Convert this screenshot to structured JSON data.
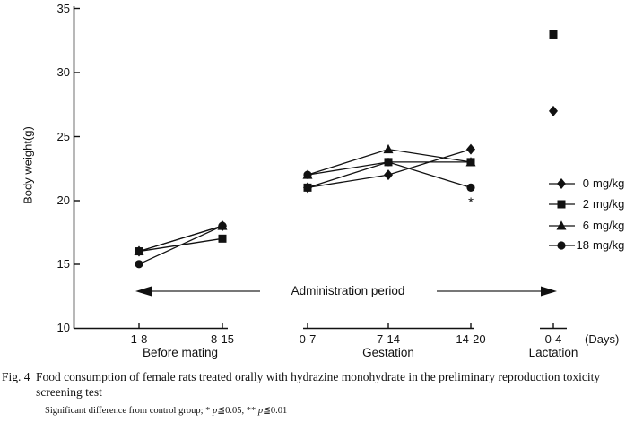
{
  "chart_data": {
    "type": "line",
    "title": "",
    "ylabel": "Body weight(g)",
    "ylim": [
      10,
      35
    ],
    "yticks_top_to_bottom": [
      "35",
      "30",
      "25",
      "20",
      "15",
      "10"
    ],
    "x_unit_label": "(Days)",
    "grid": false,
    "legend_position": "right-middle",
    "admin_arrow_label": "Administration period",
    "phases": [
      {
        "label": "Before mating",
        "categories": [
          "1-8",
          "8-15"
        ]
      },
      {
        "label": "Gestation",
        "categories": [
          "0-7",
          "7-14",
          "14-20"
        ]
      },
      {
        "label": "Lactation",
        "categories": [
          "0-4"
        ]
      }
    ],
    "series": [
      {
        "name": "0 mg/kg",
        "marker": "diamond",
        "values_by_phase": [
          [
            16,
            18
          ],
          [
            21,
            22,
            24
          ],
          [
            27
          ]
        ]
      },
      {
        "name": "2 mg/kg",
        "marker": "square",
        "values_by_phase": [
          [
            16,
            17
          ],
          [
            21,
            23,
            23
          ],
          [
            33
          ]
        ]
      },
      {
        "name": "6 mg/kg",
        "marker": "triangle",
        "values_by_phase": [
          [
            16,
            18
          ],
          [
            22,
            24,
            23
          ],
          [
            null
          ]
        ]
      },
      {
        "name": "18 mg/kg",
        "marker": "circle",
        "values_by_phase": [
          [
            15,
            18
          ],
          [
            22,
            23,
            21
          ],
          [
            null
          ]
        ]
      }
    ],
    "annotations": [
      {
        "text": "*",
        "phase_index": 1,
        "category_index": 2,
        "value": 21,
        "series": "18 mg/kg",
        "placement": "below-point"
      }
    ]
  },
  "caption": {
    "fig_label": "Fig. 4",
    "text": "Food consumption of female rats treated orally with hydrazine monohydrate in the preliminary reproduction toxicity screening test",
    "footnote_parts": {
      "p1": "Significant difference from control group; * ",
      "p2": "p",
      "p3": "≦0.05, ** ",
      "p4": "p",
      "p5": "≦0.01"
    }
  },
  "colors": {
    "data": "#111111",
    "arrow_line": "#777777",
    "arrow_head": "#111111",
    "background": "#ffffff"
  }
}
